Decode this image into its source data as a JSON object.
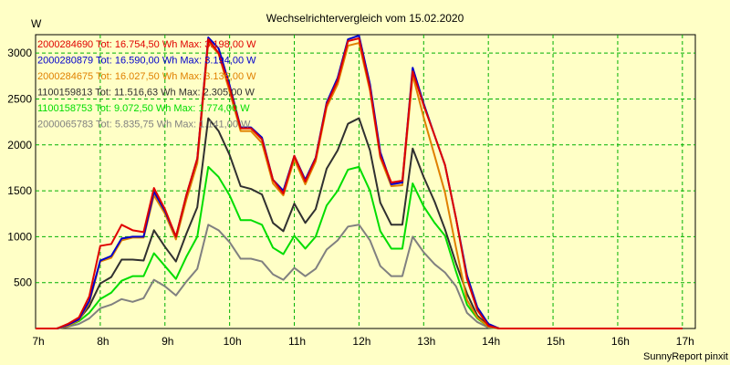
{
  "chart_data": {
    "type": "line",
    "title": "Wechselrichtervergleich vom 15.02.2020",
    "ylabel": "W",
    "xlabel": "",
    "ylim": [
      0,
      3200
    ],
    "xlim": [
      7.0,
      17.2
    ],
    "grid": true,
    "legend_position": "top-left",
    "footer": "SunnyReport pinxit",
    "y_ticks": [
      500,
      1000,
      1500,
      2000,
      2500,
      3000
    ],
    "y_tick_labels": [
      "500",
      "1000",
      "1500",
      "2000",
      "2500",
      "3000"
    ],
    "x_ticks": [
      7,
      8,
      9,
      10,
      11,
      12,
      13,
      14,
      15,
      16,
      17
    ],
    "x_tick_labels": [
      "7h",
      "8h",
      "9h",
      "10h",
      "11h",
      "12h",
      "13h",
      "14h",
      "15h",
      "16h",
      "17h"
    ],
    "x": [
      7.0,
      7.33,
      7.5,
      7.67,
      7.83,
      8.0,
      8.17,
      8.33,
      8.5,
      8.67,
      8.83,
      9.0,
      9.17,
      9.33,
      9.5,
      9.67,
      9.83,
      10.0,
      10.17,
      10.33,
      10.5,
      10.67,
      10.83,
      11.0,
      11.17,
      11.33,
      11.5,
      11.67,
      11.83,
      12.0,
      12.17,
      12.33,
      12.5,
      12.67,
      12.83,
      13.0,
      13.17,
      13.33,
      13.5,
      13.67,
      13.83,
      14.0,
      14.17,
      14.33,
      14.5,
      14.67,
      14.83,
      15.0,
      15.17,
      15.33,
      15.5,
      15.67,
      15.83,
      16.0,
      16.17,
      16.33,
      16.5,
      16.67,
      16.83,
      17.0
    ],
    "series": [
      {
        "name": "2000284690",
        "legend": "2000284690 Tot: 16.754,50 Wh Max: 3.198,00 W",
        "color": "#e00000",
        "values": [
          0,
          0,
          50,
          120,
          350,
          900,
          920,
          1130,
          1070,
          1050,
          1530,
          1300,
          1000,
          1450,
          1850,
          3150,
          3000,
          2620,
          2180,
          2180,
          2060,
          1620,
          1470,
          1880,
          1600,
          1850,
          2440,
          2700,
          3130,
          3160,
          2620,
          1880,
          1590,
          1610,
          2800,
          2430,
          2100,
          1780,
          1200,
          540,
          200,
          30,
          0,
          0,
          0,
          0,
          0,
          0,
          0,
          0,
          0,
          0,
          0,
          0,
          0,
          0,
          0,
          0,
          0,
          0
        ]
      },
      {
        "name": "2000280879",
        "legend": "2000280879 Tot: 16.590,00 Wh Max: 3.194,00 W",
        "color": "#0000cc",
        "values": [
          0,
          0,
          40,
          100,
          300,
          740,
          790,
          980,
          1000,
          1000,
          1490,
          1280,
          1000,
          1450,
          1850,
          3170,
          3050,
          2650,
          2190,
          2190,
          2080,
          1620,
          1500,
          1880,
          1620,
          1860,
          2460,
          2730,
          3150,
          3190,
          2660,
          1920,
          1570,
          1590,
          2840,
          2450,
          2100,
          1780,
          1200,
          580,
          230,
          50,
          0,
          0,
          0,
          0,
          0,
          0,
          0,
          0,
          0,
          0,
          0,
          0,
          0,
          0,
          0,
          0,
          0,
          0
        ]
      },
      {
        "name": "2000284675",
        "legend": "2000284675 Tot: 16.027,50 Wh Max: 3.136,00 W",
        "color": "#e08000",
        "values": [
          0,
          0,
          30,
          90,
          280,
          730,
          770,
          960,
          990,
          990,
          1450,
          1250,
          970,
          1400,
          1800,
          3120,
          2990,
          2580,
          2150,
          2150,
          2020,
          1580,
          1450,
          1840,
          1570,
          1820,
          2410,
          2660,
          3080,
          3110,
          2590,
          1860,
          1550,
          1560,
          2760,
          2300,
          1880,
          1480,
          880,
          310,
          120,
          20,
          0,
          0,
          0,
          0,
          0,
          0,
          0,
          0,
          0,
          0,
          0,
          0,
          0,
          0,
          0,
          0,
          0,
          0
        ]
      },
      {
        "name": "1100159813",
        "legend": "1100159813 Tot: 11.516,63 Wh Max: 2.305,00 W",
        "color": "#303030",
        "values": [
          0,
          0,
          30,
          100,
          240,
          490,
          560,
          750,
          750,
          740,
          1070,
          890,
          730,
          1030,
          1320,
          2290,
          2150,
          1890,
          1550,
          1520,
          1460,
          1150,
          1060,
          1360,
          1150,
          1300,
          1740,
          1940,
          2230,
          2290,
          1940,
          1370,
          1130,
          1130,
          1960,
          1650,
          1380,
          1080,
          710,
          380,
          140,
          30,
          0,
          0,
          0,
          0,
          0,
          0,
          0,
          0,
          0,
          0,
          0,
          0,
          0,
          0,
          0,
          0,
          0,
          0
        ]
      },
      {
        "name": "1100158753",
        "legend": "1100158753 Tot: 9.072,50 Wh Max: 1.774,00 W",
        "color": "#00dd00",
        "values": [
          0,
          0,
          30,
          80,
          170,
          320,
          390,
          520,
          570,
          570,
          820,
          680,
          540,
          780,
          1000,
          1760,
          1650,
          1450,
          1180,
          1180,
          1130,
          880,
          810,
          1010,
          870,
          1000,
          1340,
          1500,
          1730,
          1760,
          1500,
          1060,
          870,
          870,
          1580,
          1330,
          1150,
          1010,
          620,
          260,
          110,
          20,
          0,
          0,
          0,
          0,
          0,
          0,
          0,
          0,
          0,
          0,
          0,
          0,
          0,
          0,
          0,
          0,
          0,
          0
        ]
      },
      {
        "name": "2000065783",
        "legend": "2000065783 Tot: 5.835,75 Wh Max: 1.141,00 W",
        "color": "#808080",
        "values": [
          0,
          0,
          20,
          50,
          110,
          220,
          260,
          320,
          290,
          330,
          530,
          460,
          360,
          510,
          650,
          1130,
          1070,
          940,
          760,
          760,
          730,
          590,
          530,
          660,
          570,
          650,
          860,
          960,
          1110,
          1130,
          960,
          680,
          570,
          570,
          1000,
          830,
          700,
          610,
          460,
          170,
          70,
          10,
          0,
          0,
          0,
          0,
          0,
          0,
          0,
          0,
          0,
          0,
          0,
          0,
          0,
          0,
          0,
          0,
          0,
          0
        ]
      }
    ]
  }
}
